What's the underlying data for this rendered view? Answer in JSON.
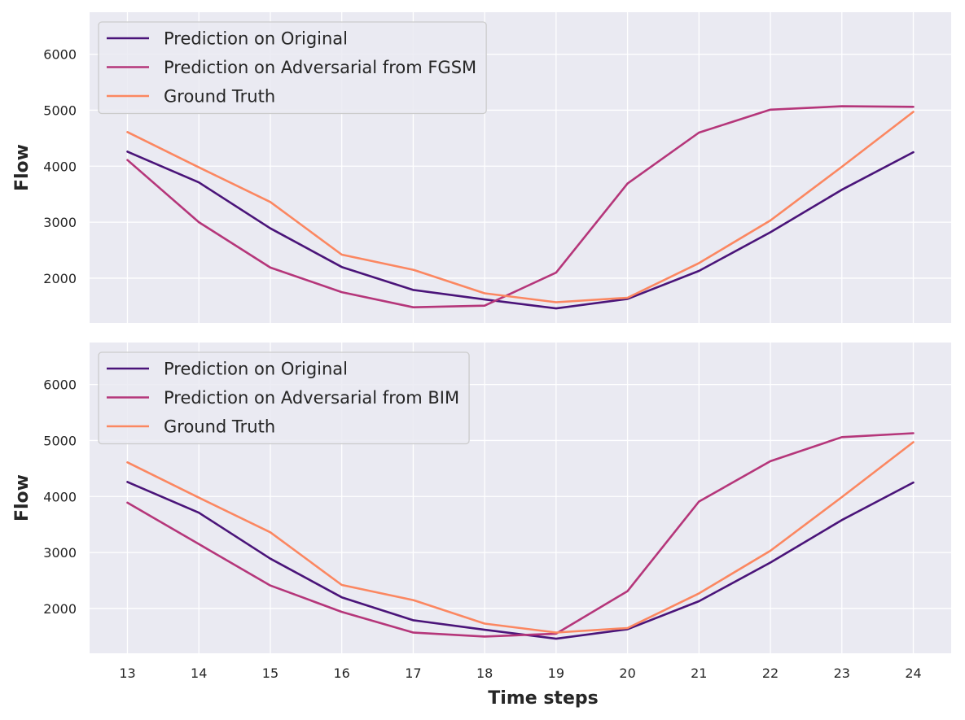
{
  "chart_data": [
    {
      "type": "line",
      "x": [
        13,
        14,
        15,
        16,
        17,
        18,
        19,
        20,
        21,
        22,
        23,
        24
      ],
      "xlabel": "",
      "ylabel": "Flow",
      "ylim": [
        1200,
        6750
      ],
      "yticks": [
        2000,
        3000,
        4000,
        5000,
        6000
      ],
      "grid": true,
      "legend_position": "top-left",
      "series": [
        {
          "name": "Prediction on Original",
          "color": "#4a1479",
          "values": [
            4260,
            3710,
            2890,
            2200,
            1790,
            1620,
            1460,
            1630,
            2130,
            2820,
            3580,
            4250
          ]
        },
        {
          "name": "Prediction on Adversarial from FGSM",
          "color": "#b5367a",
          "values": [
            4110,
            3000,
            2190,
            1750,
            1480,
            1510,
            2100,
            3690,
            4600,
            5010,
            5070,
            5060
          ]
        },
        {
          "name": "Ground Truth",
          "color": "#fb8761",
          "values": [
            4610,
            3980,
            3360,
            2420,
            2150,
            1730,
            1570,
            1650,
            2270,
            3030,
            3990,
            4970
          ]
        }
      ]
    },
    {
      "type": "line",
      "x": [
        13,
        14,
        15,
        16,
        17,
        18,
        19,
        20,
        21,
        22,
        23,
        24
      ],
      "xlabel": "Time steps",
      "ylabel": "Flow",
      "ylim": [
        1200,
        6750
      ],
      "yticks": [
        2000,
        3000,
        4000,
        5000,
        6000
      ],
      "grid": true,
      "legend_position": "top-left",
      "series": [
        {
          "name": "Prediction on Original",
          "color": "#4a1479",
          "values": [
            4260,
            3710,
            2890,
            2200,
            1790,
            1620,
            1460,
            1630,
            2130,
            2820,
            3580,
            4250
          ]
        },
        {
          "name": "Prediction on Adversarial from BIM",
          "color": "#b5367a",
          "values": [
            3890,
            3150,
            2410,
            1940,
            1570,
            1500,
            1550,
            2310,
            3910,
            4630,
            5060,
            5130
          ]
        },
        {
          "name": "Ground Truth",
          "color": "#fb8761",
          "values": [
            4610,
            3980,
            3360,
            2420,
            2150,
            1730,
            1570,
            1650,
            2270,
            3030,
            3990,
            4970
          ]
        }
      ]
    }
  ],
  "style": {
    "plot_background": "#eaeaf2",
    "grid_color": "#ffffff",
    "legend_background": "#eaeaf2",
    "legend_border": "#cccccc"
  }
}
